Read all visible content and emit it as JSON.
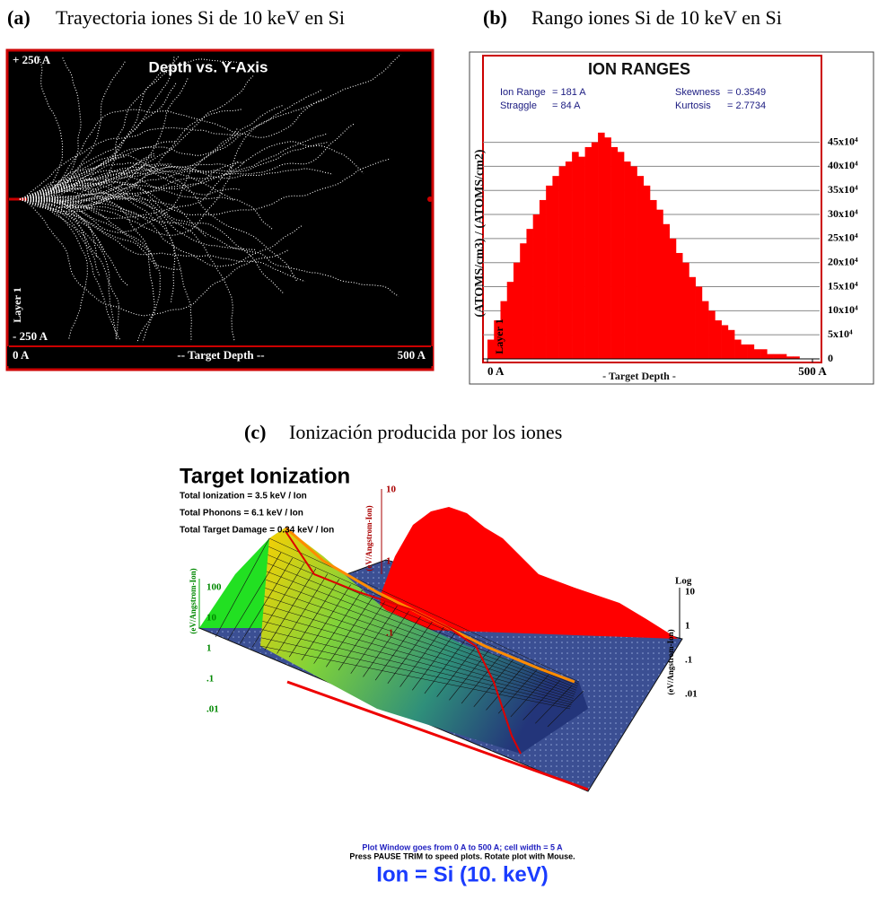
{
  "panel_a": {
    "caption_label": "(a)",
    "caption": "Trayectoria iones Si de 10 keV en Si",
    "title": "Depth vs. Y-Axis",
    "y_top": "+ 250 A",
    "y_bottom": "- 250 A",
    "layer": "Layer 1",
    "x_left": "0 A",
    "x_label": "-- Target Depth --",
    "x_right": "500 A"
  },
  "panel_b": {
    "caption_label": "(b)",
    "caption": "Rango iones Si de 10 keV en Si",
    "title": "ION RANGES",
    "stats": [
      {
        "label": "Ion Range",
        "value": "= 181 A"
      },
      {
        "label": "Straggle",
        "value": "= 84 A"
      },
      {
        "label": "Skewness",
        "value": "= 0.3549"
      },
      {
        "label": "Kurtosis",
        "value": "= 2.7734"
      }
    ],
    "y_label": "(ATOMS/cm3) / (ATOMS/cm2)",
    "layer": "Layer 1",
    "x_label": "- Target Depth -",
    "chart_data": {
      "type": "histogram",
      "color": "#ff0000",
      "grid": true,
      "xlim": [
        0,
        500
      ],
      "ylim": [
        0,
        630000
      ],
      "bins": [
        0,
        10,
        20,
        30,
        40,
        50,
        60,
        70,
        80,
        90,
        100,
        110,
        120,
        130,
        140,
        150,
        160,
        170,
        180,
        190,
        200,
        210,
        220,
        230,
        240,
        250,
        260,
        270,
        280,
        290,
        300,
        310,
        320,
        330,
        340,
        350,
        360,
        370,
        380,
        390,
        400,
        410,
        420,
        430,
        440,
        450,
        460,
        470,
        480,
        490,
        500
      ],
      "values": [
        40000,
        80000,
        120000,
        160000,
        200000,
        240000,
        270000,
        300000,
        330000,
        360000,
        380000,
        400000,
        410000,
        430000,
        420000,
        440000,
        450000,
        470000,
        460000,
        440000,
        430000,
        410000,
        400000,
        380000,
        360000,
        330000,
        310000,
        280000,
        250000,
        220000,
        200000,
        170000,
        150000,
        120000,
        100000,
        80000,
        70000,
        60000,
        40000,
        30000,
        30000,
        20000,
        20000,
        10000,
        10000,
        10000,
        5000,
        5000,
        0,
        0
      ],
      "xticks": [
        {
          "value": 0,
          "label": "0 A"
        },
        {
          "value": 500,
          "label": "500 A"
        }
      ],
      "yticks": [
        0,
        {
          "value": 50000,
          "label": "5x10⁴"
        },
        {
          "value": 100000,
          "label": "10x10⁴"
        },
        {
          "value": 150000,
          "label": "15x10⁴"
        },
        {
          "value": 200000,
          "label": "20x10⁴"
        },
        {
          "value": 250000,
          "label": "25x10⁴"
        },
        {
          "value": 300000,
          "label": "30x10⁴"
        },
        {
          "value": 350000,
          "label": "35x10⁴"
        },
        {
          "value": 400000,
          "label": "40x10⁴"
        },
        {
          "value": 450000,
          "label": "45x10⁴"
        }
      ]
    }
  },
  "panel_c": {
    "caption_label": "(c)",
    "caption": "Ionización producida por los iones",
    "title": "Target Ionization",
    "stats": [
      "Total Ionization = 3.5 keV / Ion",
      "Total Phonons = 6.1 keV / Ion",
      "Total Target Damage = 0.34 keV / Ion"
    ],
    "left_ticks": [
      "100",
      "10",
      "1",
      ".1",
      ".01"
    ],
    "back_ticks": [
      "10",
      "1",
      ".1"
    ],
    "right_ticks": [
      "10",
      "1",
      ".1",
      ".01"
    ],
    "left_axis_label": "(eV/Angstrom-Ion)",
    "back_axis_label": "(eV/Angstrom-Ion)",
    "right_axis_label": "(eV/Angstrom-Ion)",
    "right_axis_title": "Log",
    "note_1": "Plot Window goes from 0 A to 500 A; cell width = 5 A",
    "note_2": "Press PAUSE TRIM to speed plots.    Rotate plot with Mouse.",
    "ion": "Ion = Si (10. keV)"
  }
}
